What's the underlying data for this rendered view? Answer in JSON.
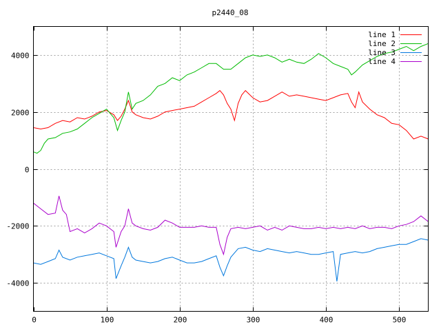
{
  "chart_data": {
    "type": "line",
    "title": "p2440_08",
    "xlabel": "",
    "ylabel": "",
    "xlim": [
      0,
      540
    ],
    "ylim": [
      -5000,
      5000
    ],
    "x_ticks": [
      0,
      100,
      200,
      300,
      400,
      500
    ],
    "y_ticks": [
      -4000,
      -2000,
      0,
      2000,
      4000
    ],
    "grid": true,
    "legend_position": "top-right",
    "series": [
      {
        "name": "line 1",
        "color": "#ff0000",
        "points": [
          [
            0,
            1450
          ],
          [
            10,
            1400
          ],
          [
            20,
            1450
          ],
          [
            30,
            1600
          ],
          [
            40,
            1700
          ],
          [
            50,
            1650
          ],
          [
            60,
            1800
          ],
          [
            70,
            1750
          ],
          [
            80,
            1850
          ],
          [
            90,
            2000
          ],
          [
            100,
            2050
          ],
          [
            110,
            1900
          ],
          [
            115,
            1700
          ],
          [
            120,
            1850
          ],
          [
            125,
            2100
          ],
          [
            130,
            2400
          ],
          [
            135,
            2000
          ],
          [
            140,
            1900
          ],
          [
            150,
            1800
          ],
          [
            160,
            1750
          ],
          [
            170,
            1850
          ],
          [
            180,
            2000
          ],
          [
            190,
            2050
          ],
          [
            200,
            2100
          ],
          [
            210,
            2150
          ],
          [
            220,
            2200
          ],
          [
            230,
            2350
          ],
          [
            240,
            2500
          ],
          [
            250,
            2650
          ],
          [
            255,
            2750
          ],
          [
            260,
            2600
          ],
          [
            265,
            2300
          ],
          [
            270,
            2100
          ],
          [
            275,
            1700
          ],
          [
            280,
            2300
          ],
          [
            285,
            2600
          ],
          [
            290,
            2750
          ],
          [
            300,
            2500
          ],
          [
            310,
            2350
          ],
          [
            320,
            2400
          ],
          [
            330,
            2550
          ],
          [
            340,
            2700
          ],
          [
            350,
            2550
          ],
          [
            360,
            2600
          ],
          [
            370,
            2550
          ],
          [
            380,
            2500
          ],
          [
            390,
            2450
          ],
          [
            400,
            2400
          ],
          [
            410,
            2500
          ],
          [
            420,
            2600
          ],
          [
            430,
            2650
          ],
          [
            435,
            2350
          ],
          [
            440,
            2150
          ],
          [
            445,
            2700
          ],
          [
            450,
            2350
          ],
          [
            460,
            2100
          ],
          [
            470,
            1900
          ],
          [
            480,
            1800
          ],
          [
            490,
            1600
          ],
          [
            500,
            1550
          ],
          [
            510,
            1350
          ],
          [
            520,
            1050
          ],
          [
            530,
            1150
          ],
          [
            540,
            1050
          ]
        ]
      },
      {
        "name": "line 2",
        "color": "#00bb00",
        "points": [
          [
            0,
            600
          ],
          [
            5,
            550
          ],
          [
            10,
            650
          ],
          [
            15,
            900
          ],
          [
            20,
            1050
          ],
          [
            30,
            1100
          ],
          [
            40,
            1250
          ],
          [
            50,
            1300
          ],
          [
            60,
            1400
          ],
          [
            70,
            1600
          ],
          [
            80,
            1800
          ],
          [
            90,
            1950
          ],
          [
            100,
            2100
          ],
          [
            110,
            1800
          ],
          [
            115,
            1350
          ],
          [
            120,
            1700
          ],
          [
            125,
            2000
          ],
          [
            130,
            2700
          ],
          [
            135,
            2100
          ],
          [
            140,
            2300
          ],
          [
            150,
            2400
          ],
          [
            160,
            2600
          ],
          [
            170,
            2900
          ],
          [
            180,
            3000
          ],
          [
            190,
            3200
          ],
          [
            200,
            3100
          ],
          [
            210,
            3300
          ],
          [
            220,
            3400
          ],
          [
            230,
            3550
          ],
          [
            240,
            3700
          ],
          [
            250,
            3700
          ],
          [
            260,
            3500
          ],
          [
            270,
            3500
          ],
          [
            280,
            3700
          ],
          [
            290,
            3900
          ],
          [
            300,
            4000
          ],
          [
            310,
            3950
          ],
          [
            320,
            4000
          ],
          [
            330,
            3900
          ],
          [
            340,
            3750
          ],
          [
            350,
            3850
          ],
          [
            360,
            3750
          ],
          [
            370,
            3700
          ],
          [
            380,
            3850
          ],
          [
            390,
            4050
          ],
          [
            400,
            3900
          ],
          [
            410,
            3700
          ],
          [
            420,
            3600
          ],
          [
            430,
            3500
          ],
          [
            435,
            3300
          ],
          [
            440,
            3400
          ],
          [
            450,
            3650
          ],
          [
            460,
            3800
          ],
          [
            470,
            3950
          ],
          [
            480,
            4050
          ],
          [
            490,
            4100
          ],
          [
            500,
            4200
          ],
          [
            510,
            4300
          ],
          [
            520,
            4150
          ],
          [
            530,
            4300
          ],
          [
            540,
            4400
          ]
        ]
      },
      {
        "name": "line 3",
        "color": "#0077dd",
        "points": [
          [
            0,
            -3300
          ],
          [
            10,
            -3350
          ],
          [
            20,
            -3250
          ],
          [
            30,
            -3150
          ],
          [
            35,
            -2850
          ],
          [
            40,
            -3100
          ],
          [
            50,
            -3200
          ],
          [
            60,
            -3100
          ],
          [
            70,
            -3050
          ],
          [
            80,
            -3000
          ],
          [
            90,
            -2950
          ],
          [
            100,
            -3050
          ],
          [
            110,
            -3150
          ],
          [
            113,
            -3850
          ],
          [
            120,
            -3400
          ],
          [
            125,
            -3100
          ],
          [
            130,
            -2750
          ],
          [
            135,
            -3100
          ],
          [
            140,
            -3200
          ],
          [
            150,
            -3250
          ],
          [
            160,
            -3300
          ],
          [
            170,
            -3250
          ],
          [
            180,
            -3150
          ],
          [
            190,
            -3100
          ],
          [
            200,
            -3200
          ],
          [
            210,
            -3300
          ],
          [
            220,
            -3300
          ],
          [
            230,
            -3250
          ],
          [
            240,
            -3150
          ],
          [
            250,
            -3050
          ],
          [
            255,
            -3450
          ],
          [
            260,
            -3750
          ],
          [
            265,
            -3400
          ],
          [
            270,
            -3100
          ],
          [
            280,
            -2800
          ],
          [
            290,
            -2750
          ],
          [
            300,
            -2850
          ],
          [
            310,
            -2900
          ],
          [
            320,
            -2800
          ],
          [
            330,
            -2850
          ],
          [
            340,
            -2900
          ],
          [
            350,
            -2950
          ],
          [
            360,
            -2900
          ],
          [
            370,
            -2950
          ],
          [
            380,
            -3000
          ],
          [
            390,
            -3000
          ],
          [
            400,
            -2950
          ],
          [
            410,
            -2900
          ],
          [
            415,
            -3950
          ],
          [
            420,
            -3000
          ],
          [
            430,
            -2950
          ],
          [
            440,
            -2900
          ],
          [
            450,
            -2950
          ],
          [
            460,
            -2900
          ],
          [
            470,
            -2800
          ],
          [
            480,
            -2750
          ],
          [
            490,
            -2700
          ],
          [
            500,
            -2650
          ],
          [
            510,
            -2650
          ],
          [
            520,
            -2550
          ],
          [
            530,
            -2450
          ],
          [
            540,
            -2500
          ]
        ]
      },
      {
        "name": "line 4",
        "color": "#aa00cc",
        "points": [
          [
            0,
            -1200
          ],
          [
            10,
            -1400
          ],
          [
            20,
            -1600
          ],
          [
            30,
            -1550
          ],
          [
            35,
            -950
          ],
          [
            40,
            -1450
          ],
          [
            45,
            -1600
          ],
          [
            50,
            -2200
          ],
          [
            60,
            -2100
          ],
          [
            70,
            -2250
          ],
          [
            80,
            -2100
          ],
          [
            90,
            -1900
          ],
          [
            100,
            -2000
          ],
          [
            110,
            -2200
          ],
          [
            113,
            -2750
          ],
          [
            120,
            -2200
          ],
          [
            125,
            -2000
          ],
          [
            130,
            -1400
          ],
          [
            135,
            -1900
          ],
          [
            140,
            -2000
          ],
          [
            150,
            -2100
          ],
          [
            160,
            -2150
          ],
          [
            170,
            -2050
          ],
          [
            180,
            -1800
          ],
          [
            190,
            -1900
          ],
          [
            200,
            -2050
          ],
          [
            210,
            -2050
          ],
          [
            220,
            -2050
          ],
          [
            230,
            -2000
          ],
          [
            240,
            -2050
          ],
          [
            250,
            -2050
          ],
          [
            255,
            -2650
          ],
          [
            260,
            -3000
          ],
          [
            265,
            -2400
          ],
          [
            270,
            -2100
          ],
          [
            280,
            -2050
          ],
          [
            290,
            -2100
          ],
          [
            300,
            -2050
          ],
          [
            310,
            -2000
          ],
          [
            320,
            -2150
          ],
          [
            330,
            -2050
          ],
          [
            340,
            -2150
          ],
          [
            350,
            -2000
          ],
          [
            360,
            -2050
          ],
          [
            370,
            -2100
          ],
          [
            380,
            -2100
          ],
          [
            390,
            -2050
          ],
          [
            400,
            -2100
          ],
          [
            410,
            -2050
          ],
          [
            420,
            -2100
          ],
          [
            430,
            -2050
          ],
          [
            440,
            -2100
          ],
          [
            450,
            -2000
          ],
          [
            460,
            -2100
          ],
          [
            470,
            -2050
          ],
          [
            480,
            -2050
          ],
          [
            490,
            -2100
          ],
          [
            500,
            -2000
          ],
          [
            510,
            -1950
          ],
          [
            520,
            -1850
          ],
          [
            530,
            -1650
          ],
          [
            540,
            -1850
          ]
        ]
      }
    ]
  }
}
